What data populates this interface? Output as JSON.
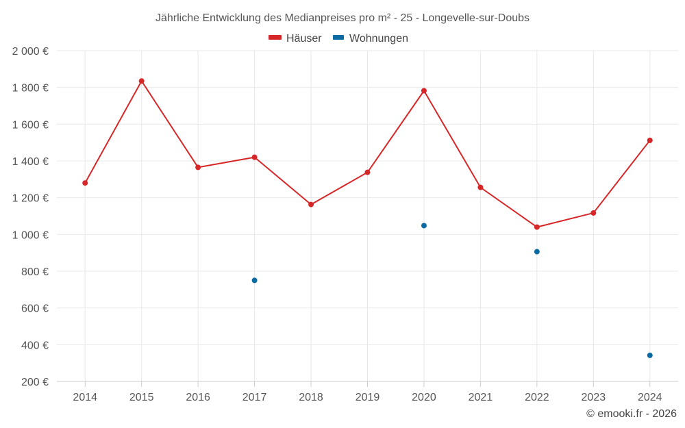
{
  "chart_data": {
    "type": "line",
    "title": "Jährliche Entwicklung des Medianpreises pro m² - 25 - Longevelle-sur-Doubs",
    "categories": [
      "2014",
      "2015",
      "2016",
      "2017",
      "2018",
      "2019",
      "2020",
      "2021",
      "2022",
      "2023",
      "2024"
    ],
    "ylim": [
      200,
      2000
    ],
    "yticks": [
      200,
      400,
      600,
      800,
      1000,
      1200,
      1400,
      1600,
      1800,
      2000
    ],
    "ytick_labels": [
      "200 €",
      "400 €",
      "600 €",
      "800 €",
      "1 000 €",
      "1 200 €",
      "1 400 €",
      "1 600 €",
      "1 800 €",
      "2 000 €"
    ],
    "grid": true,
    "legend_position": "top-center",
    "series": [
      {
        "name": "Häuser",
        "color": "#d62728",
        "mode": "line+markers",
        "values": [
          1280,
          1835,
          1365,
          1420,
          1163,
          1338,
          1782,
          1256,
          1040,
          1117,
          1512
        ]
      },
      {
        "name": "Wohnungen",
        "color": "#0b6aa2",
        "mode": "markers",
        "values": [
          null,
          null,
          null,
          750,
          null,
          null,
          1048,
          null,
          906,
          null,
          342
        ]
      }
    ]
  },
  "credit": "© emooki.fr - 2026"
}
